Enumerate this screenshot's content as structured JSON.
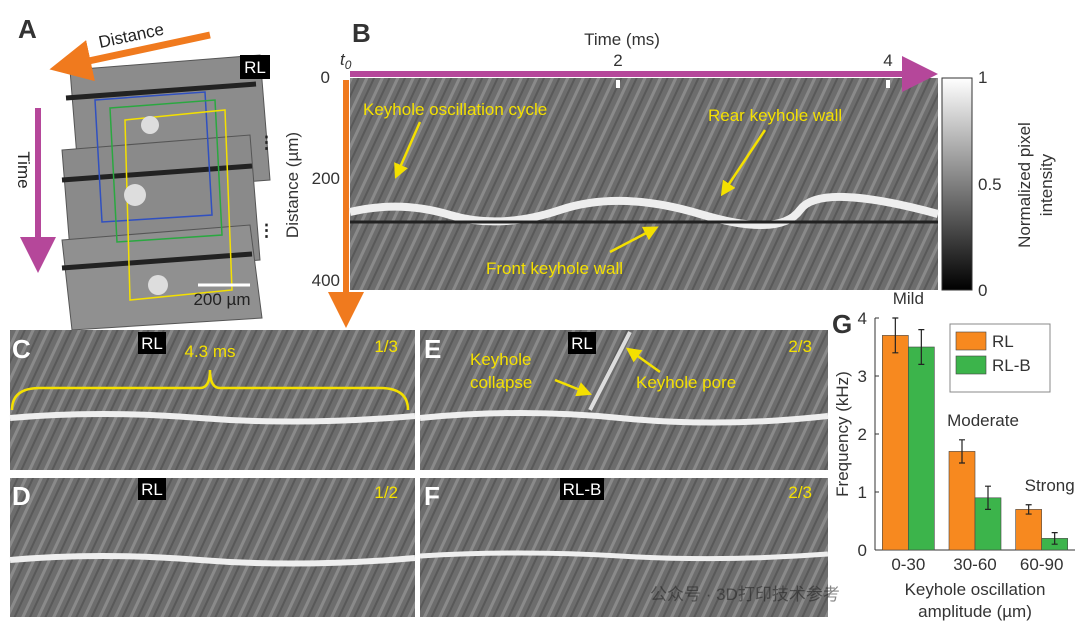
{
  "panel_labels": [
    "A",
    "B",
    "C",
    "D",
    "E",
    "F",
    "G"
  ],
  "panel_a": {
    "distance": "Distance",
    "time": "Time",
    "tag": "RL",
    "scale_bar": "200 µm"
  },
  "panel_b": {
    "x_label": "Time (ms)",
    "t": "t",
    "t_sub": "0",
    "x_ticks": [
      "2",
      "4"
    ],
    "y_label": "Distance (µm)",
    "y_ticks": [
      "0",
      "200",
      "400"
    ],
    "annotations": [
      "Keyhole oscillation cycle",
      "Rear keyhole wall",
      "Front keyhole wall"
    ],
    "colorbar_label": [
      "Normalized pixel",
      "intensity"
    ],
    "colorbar_ticks": [
      "1",
      "0.5",
      "0"
    ]
  },
  "panel_c": {
    "tag": "RL",
    "duration": "4.3 ms",
    "fraction": "1/3"
  },
  "panel_d": {
    "tag": "RL",
    "fraction": "1/2"
  },
  "panel_e": {
    "tag": "RL",
    "annotations": [
      "Keyhole",
      "collapse",
      "Keyhole pore"
    ],
    "fraction": "2/3"
  },
  "panel_f": {
    "tag": "RL-B",
    "fraction": "2/3"
  },
  "watermark": "公众号 · 3D打印技术参考",
  "chart_data": {
    "type": "bar",
    "ylabel": "Frequency (kHz)",
    "xlabel": [
      "Keyhole oscillation",
      "amplitude (µm)"
    ],
    "categories": [
      "0-30",
      "30-60",
      "60-90"
    ],
    "series": [
      {
        "name": "RL",
        "color": "#f7891f",
        "values": [
          3.7,
          1.7,
          0.7
        ],
        "errors": [
          0.3,
          0.2,
          0.08
        ]
      },
      {
        "name": "RL-B",
        "color": "#3cb44b",
        "values": [
          3.5,
          0.9,
          0.2
        ],
        "errors": [
          0.3,
          0.2,
          0.1
        ]
      }
    ],
    "annotations": [
      "Mild",
      "Moderate",
      "Strong"
    ],
    "ylim": [
      0,
      4
    ],
    "yticks": [
      0,
      1,
      2,
      3,
      4
    ],
    "legend": "upper right"
  }
}
